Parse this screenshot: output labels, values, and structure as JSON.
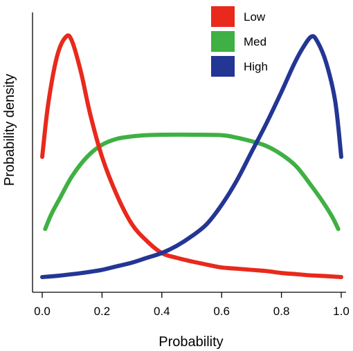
{
  "chart_data": {
    "type": "line",
    "title": "",
    "xlabel": "Probability",
    "ylabel": "Probability density",
    "xlim": [
      0.0,
      1.0
    ],
    "xticks": [
      "0.0",
      "0.2",
      "0.4",
      "0.6",
      "0.8",
      "1.0"
    ],
    "y_ticks_shown": false,
    "grid": false,
    "legend_position": "top-right",
    "series": [
      {
        "name": "Low",
        "color": "#e8291c",
        "x": [
          0.0,
          0.02,
          0.05,
          0.08,
          0.1,
          0.13,
          0.16,
          0.2,
          0.25,
          0.3,
          0.35,
          0.4,
          0.45,
          0.5,
          0.55,
          0.6,
          0.65,
          0.7,
          0.75,
          0.8,
          0.85,
          0.9,
          0.95,
          1.0
        ],
        "values": [
          0.5,
          0.72,
          0.92,
          1.0,
          0.98,
          0.85,
          0.68,
          0.5,
          0.34,
          0.22,
          0.15,
          0.1,
          0.08,
          0.065,
          0.052,
          0.04,
          0.035,
          0.03,
          0.025,
          0.017,
          0.012,
          0.007,
          0.004,
          0.0
        ]
      },
      {
        "name": "Med",
        "color": "#3fb043",
        "x": [
          0.01,
          0.03,
          0.06,
          0.1,
          0.15,
          0.2,
          0.25,
          0.3,
          0.35,
          0.4,
          0.5,
          0.6,
          0.65,
          0.7,
          0.75,
          0.8,
          0.85,
          0.9,
          0.94,
          0.97,
          0.99
        ],
        "values": [
          0.2,
          0.26,
          0.33,
          0.42,
          0.5,
          0.55,
          0.575,
          0.585,
          0.59,
          0.592,
          0.592,
          0.59,
          0.58,
          0.565,
          0.545,
          0.51,
          0.46,
          0.38,
          0.31,
          0.25,
          0.2
        ]
      },
      {
        "name": "High",
        "color": "#233694",
        "x": [
          0.0,
          0.05,
          0.1,
          0.15,
          0.2,
          0.25,
          0.3,
          0.35,
          0.4,
          0.45,
          0.5,
          0.55,
          0.6,
          0.65,
          0.7,
          0.75,
          0.8,
          0.84,
          0.87,
          0.9,
          0.92,
          0.95,
          0.98,
          1.0
        ],
        "values": [
          0.0,
          0.005,
          0.012,
          0.02,
          0.03,
          0.045,
          0.06,
          0.08,
          0.1,
          0.13,
          0.17,
          0.22,
          0.3,
          0.4,
          0.52,
          0.64,
          0.77,
          0.88,
          0.95,
          1.0,
          0.98,
          0.89,
          0.73,
          0.5
        ]
      }
    ]
  }
}
